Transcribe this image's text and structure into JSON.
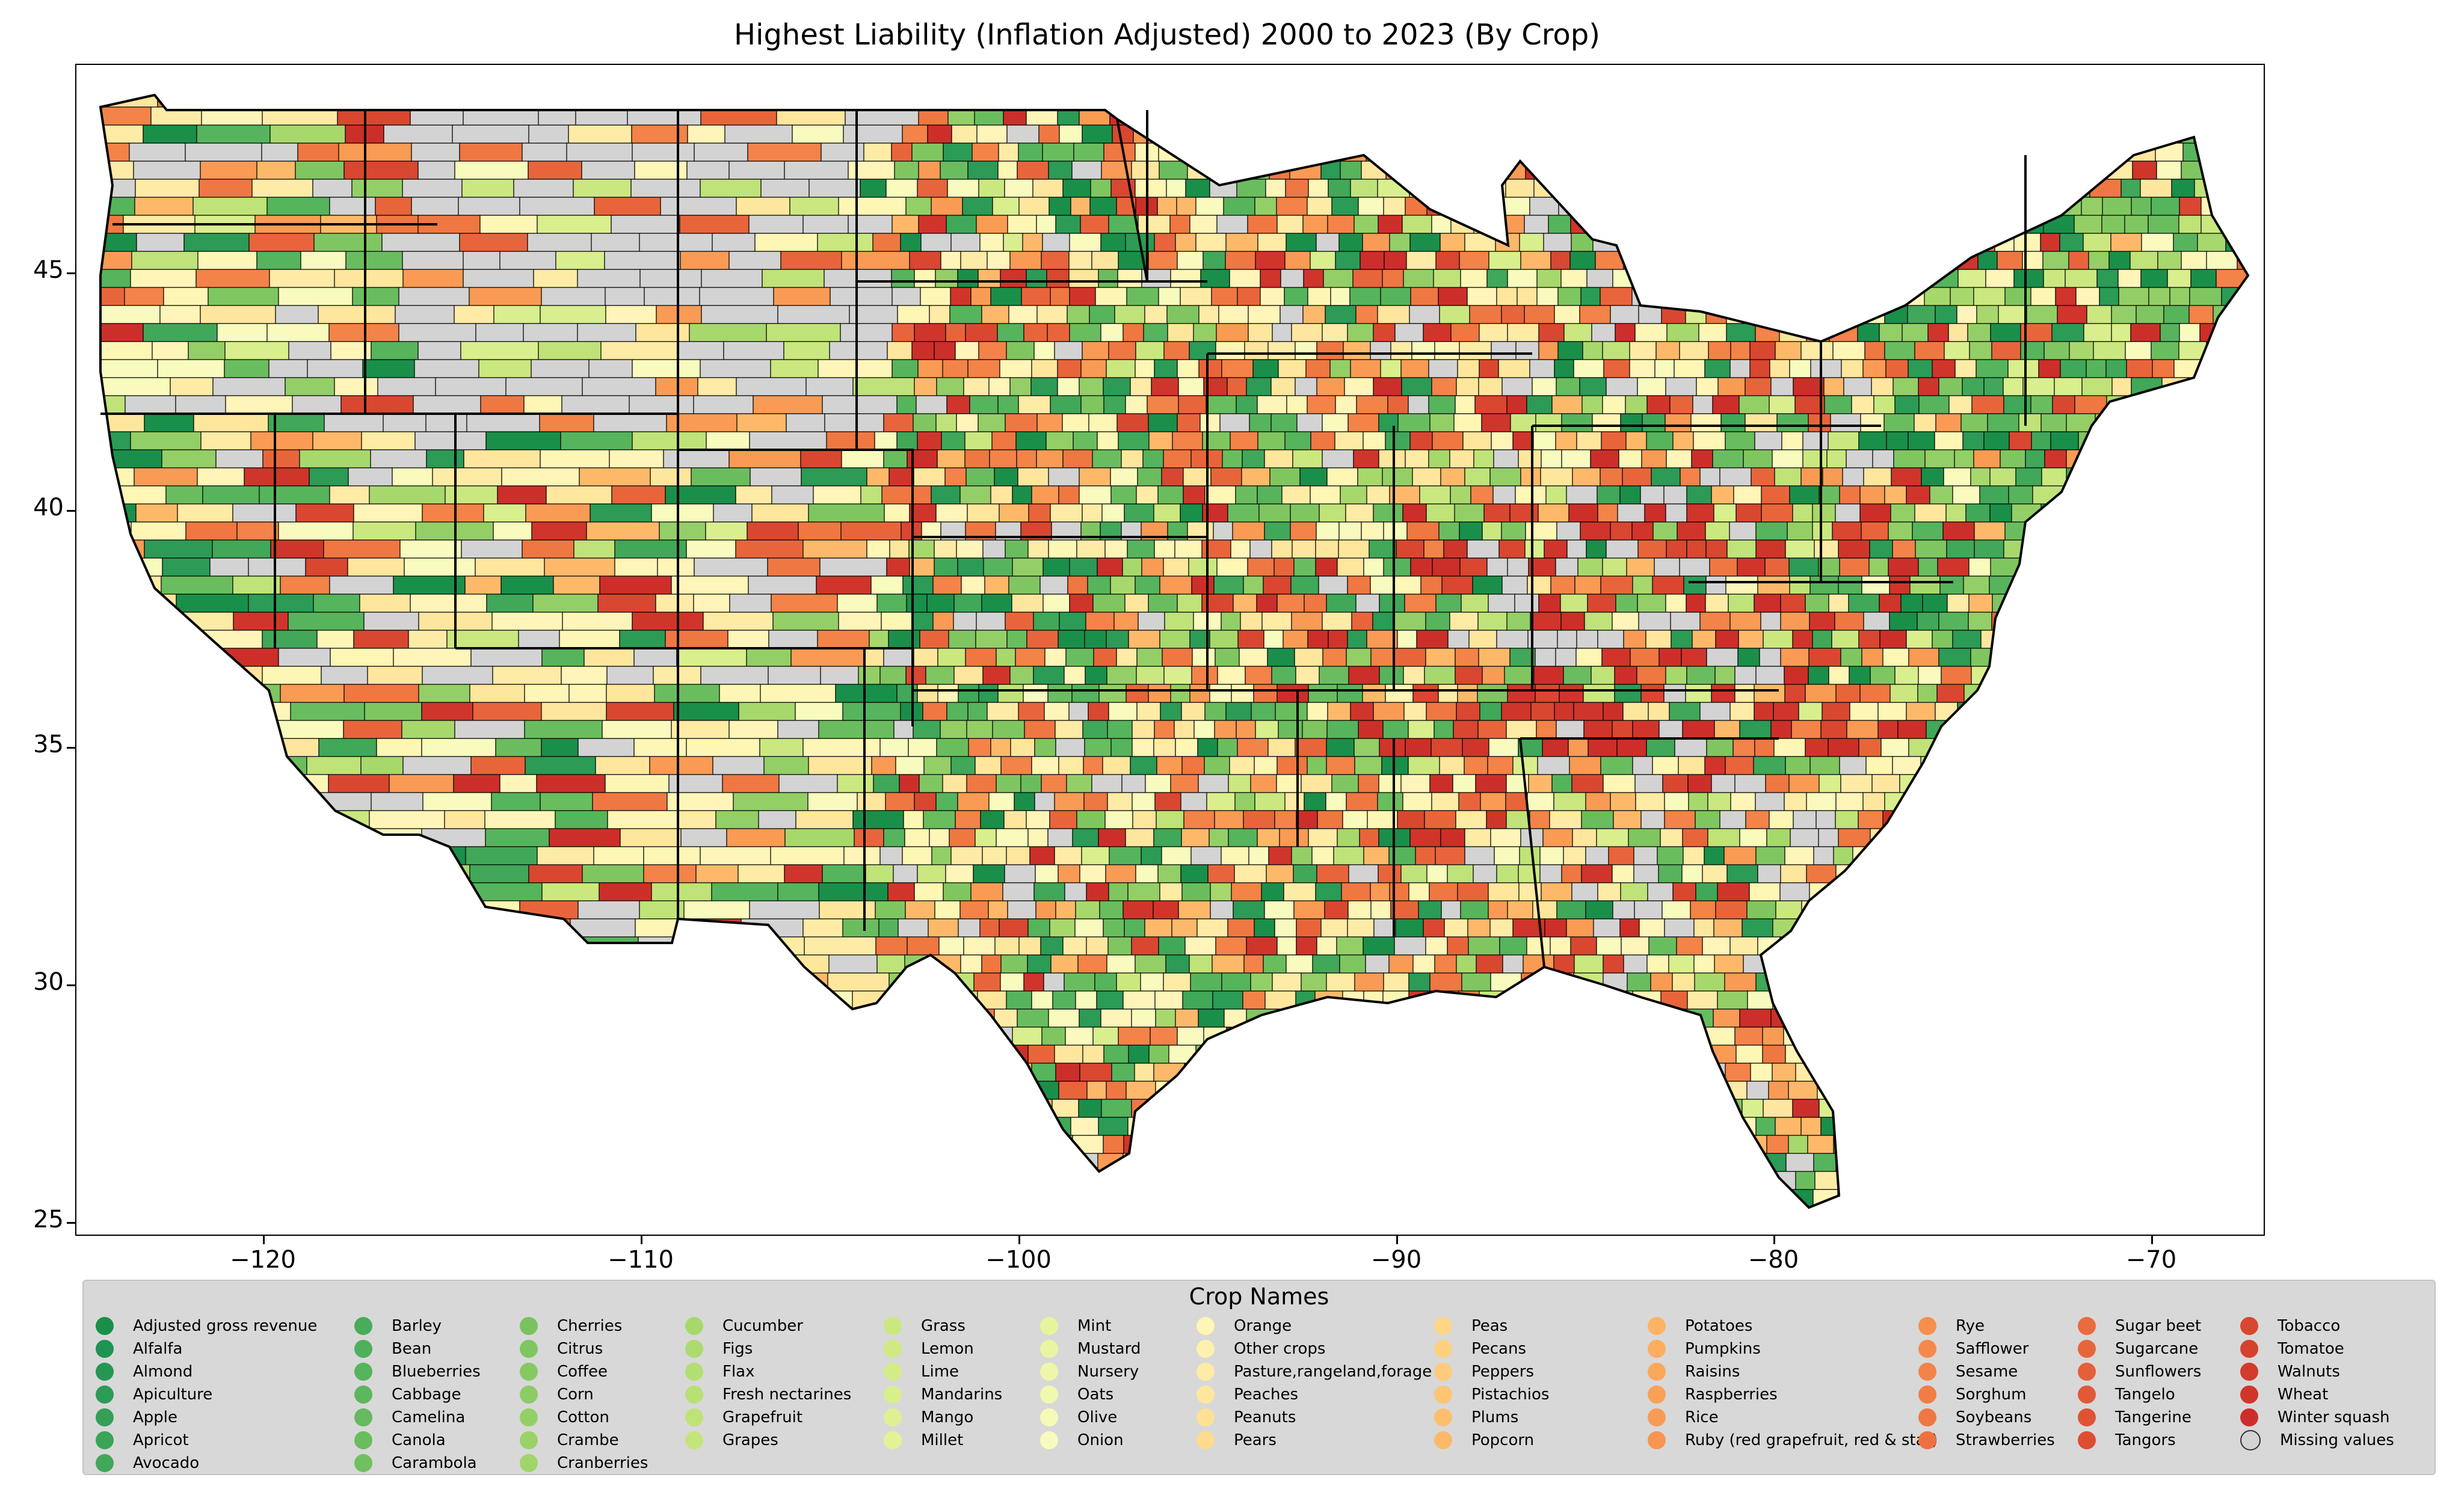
{
  "title": "Highest Liability  (Inflation Adjusted) 2000 to 2023 (By Crop)",
  "axes": {
    "x_ticks": [
      "−120",
      "−110",
      "−100",
      "−90",
      "−80",
      "−70"
    ],
    "y_ticks": [
      "25",
      "30",
      "35",
      "40",
      "45"
    ],
    "x_range": [
      -124.9,
      -66.9
    ],
    "y_range": [
      24.5,
      49.4
    ]
  },
  "legend": {
    "title": "Crop Names",
    "columns": [
      [
        {
          "label": "Adjusted gross revenue",
          "color": "#1a8f4a"
        },
        {
          "label": "Alfalfa",
          "color": "#1f9350"
        },
        {
          "label": "Almond",
          "color": "#259753"
        },
        {
          "label": "Apiculture",
          "color": "#2b9b56"
        },
        {
          "label": "Apple",
          "color": "#33a056"
        },
        {
          "label": "Apricot",
          "color": "#3aa457"
        },
        {
          "label": "Avocado",
          "color": "#40a858"
        }
      ],
      [
        {
          "label": "Barley",
          "color": "#48ac5a"
        },
        {
          "label": "Bean",
          "color": "#4fb05b"
        },
        {
          "label": "Blueberries",
          "color": "#56b45c"
        },
        {
          "label": "Cabbage",
          "color": "#5db75c"
        },
        {
          "label": "Camelina",
          "color": "#64ba5d"
        },
        {
          "label": "Canola",
          "color": "#6abd5e"
        },
        {
          "label": "Carambola",
          "color": "#71c05f"
        }
      ],
      [
        {
          "label": "Cherries",
          "color": "#78c360"
        },
        {
          "label": "Citrus",
          "color": "#7fc661"
        },
        {
          "label": "Coffee",
          "color": "#86c963"
        },
        {
          "label": "Corn",
          "color": "#8ccc64"
        },
        {
          "label": "Cotton",
          "color": "#93cf66"
        },
        {
          "label": "Crambe",
          "color": "#99d268"
        },
        {
          "label": "Cranberries",
          "color": "#a0d56a"
        }
      ],
      [
        {
          "label": "Cucumber",
          "color": "#a7d86c"
        },
        {
          "label": "Figs",
          "color": "#addb6f"
        },
        {
          "label": "Flax",
          "color": "#b3de72"
        },
        {
          "label": "Fresh nectarines",
          "color": "#b9e075"
        },
        {
          "label": "Grapefruit",
          "color": "#bfe378"
        },
        {
          "label": "Grapes",
          "color": "#c4e57b"
        }
      ],
      [
        {
          "label": "Grass",
          "color": "#cae87f"
        },
        {
          "label": "Lemon",
          "color": "#cfea83"
        },
        {
          "label": "Lime",
          "color": "#d4ec88"
        },
        {
          "label": "Mandarins",
          "color": "#d9ee8d"
        },
        {
          "label": "Mango",
          "color": "#def092"
        },
        {
          "label": "Millet",
          "color": "#e2f297"
        }
      ],
      [
        {
          "label": "Mint",
          "color": "#e6f49d"
        },
        {
          "label": "Mustard",
          "color": "#eaf5a3"
        },
        {
          "label": "Nursery",
          "color": "#eef7a9"
        },
        {
          "label": "Oats",
          "color": "#f1f8b0"
        },
        {
          "label": "Olive",
          "color": "#f5fab7"
        },
        {
          "label": "Onion",
          "color": "#f8fbbd"
        }
      ],
      [
        {
          "label": "Orange",
          "color": "#fdf6b5"
        },
        {
          "label": "Other crops",
          "color": "#fdf1ad"
        },
        {
          "label": "Pasture,rangeland,forage",
          "color": "#feeba5"
        },
        {
          "label": "Peaches",
          "color": "#fee69d"
        },
        {
          "label": "Peanuts",
          "color": "#fee195"
        },
        {
          "label": "Pears",
          "color": "#fedb8e"
        }
      ],
      [
        {
          "label": "Peas",
          "color": "#fed687"
        },
        {
          "label": "Pecans",
          "color": "#fed180"
        },
        {
          "label": "Peppers",
          "color": "#fdcb7a"
        },
        {
          "label": "Pistachios",
          "color": "#fdc574"
        },
        {
          "label": "Plums",
          "color": "#fdbf6e"
        },
        {
          "label": "Popcorn",
          "color": "#fdb969"
        }
      ],
      [
        {
          "label": "Potatoes",
          "color": "#fcb364"
        },
        {
          "label": "Pumpkins",
          "color": "#fcad60"
        },
        {
          "label": "Raisins",
          "color": "#fba75c"
        },
        {
          "label": "Raspberries",
          "color": "#faa158"
        },
        {
          "label": "Rice",
          "color": "#f99b54"
        },
        {
          "label": "Ruby (red grapefruit, red & star)",
          "color": "#f89551"
        }
      ],
      [
        {
          "label": "Rye",
          "color": "#f68f4e"
        },
        {
          "label": "Safflower",
          "color": "#f5894b"
        },
        {
          "label": "Sesame",
          "color": "#f38348"
        },
        {
          "label": "Sorghum",
          "color": "#f17d45"
        },
        {
          "label": "Soybeans",
          "color": "#ef7742"
        },
        {
          "label": "Strawberries",
          "color": "#ed7140"
        }
      ],
      [
        {
          "label": "Sugar beet",
          "color": "#ea6b3d"
        },
        {
          "label": "Sugarcane",
          "color": "#e8653b"
        },
        {
          "label": "Sunflowers",
          "color": "#e55f39"
        },
        {
          "label": "Tangelo",
          "color": "#e25936"
        },
        {
          "label": "Tangerine",
          "color": "#df5334"
        },
        {
          "label": "Tangors",
          "color": "#dc4d32"
        }
      ],
      [
        {
          "label": "Tobacco",
          "color": "#d94730"
        },
        {
          "label": "Tomatoe",
          "color": "#d6412e"
        },
        {
          "label": "Walnuts",
          "color": "#d33b2c"
        },
        {
          "label": "Wheat",
          "color": "#d0352b"
        },
        {
          "label": "Winter squash",
          "color": "#cc2f29"
        },
        {
          "label": "Missing values",
          "color": "#d3d3d3"
        }
      ]
    ]
  },
  "colors": {
    "missing": "#d3d3d3",
    "state_border": "#000000"
  }
}
